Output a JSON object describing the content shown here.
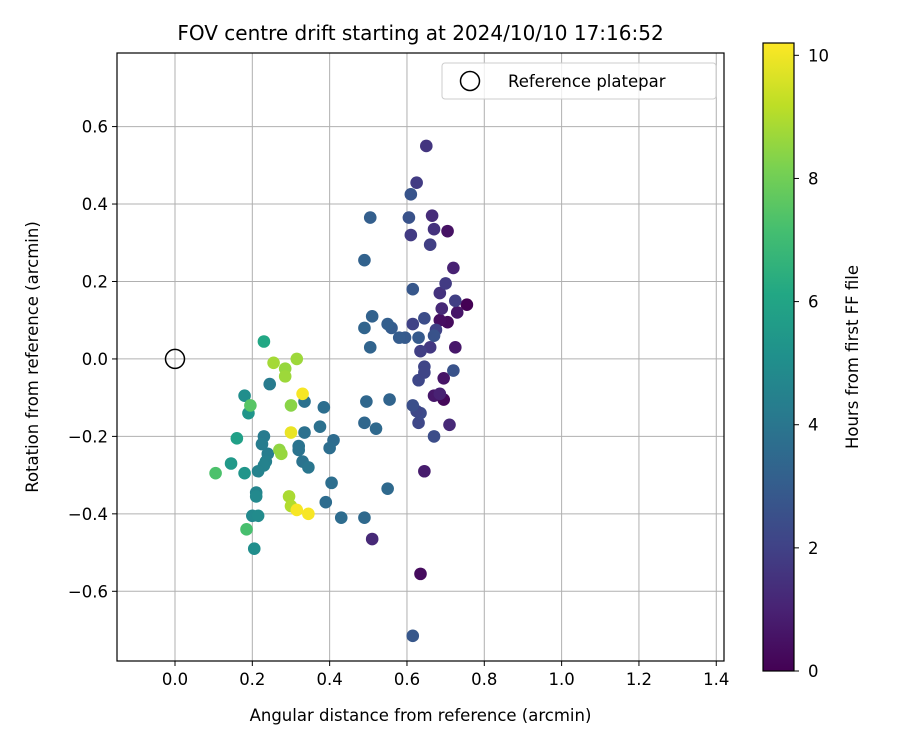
{
  "chart_data": {
    "type": "scatter",
    "title": "FOV centre drift starting at 2024/10/10 17:16:52",
    "xlabel": "Angular distance from reference (arcmin)",
    "ylabel": "Rotation from reference (arcmin)",
    "xlim": [
      -0.15,
      1.42
    ],
    "ylim": [
      -0.78,
      0.79
    ],
    "xticks": [
      "0.0",
      "0.2",
      "0.4",
      "0.6",
      "0.8",
      "1.0",
      "1.2",
      "1.4"
    ],
    "yticks": [
      "−0.6",
      "−0.4",
      "−0.2",
      "0.0",
      "0.2",
      "0.4",
      "0.6"
    ],
    "xtick_values": [
      0.0,
      0.2,
      0.4,
      0.6,
      0.8,
      1.0,
      1.2,
      1.4
    ],
    "ytick_values": [
      -0.6,
      -0.4,
      -0.2,
      0.0,
      0.2,
      0.4,
      0.6
    ],
    "grid": true,
    "legend": {
      "placement": "top-right",
      "entries": [
        "Reference platepar"
      ]
    },
    "reference_point": {
      "x": 0.0,
      "y": 0.0
    },
    "colorbar": {
      "label": "Hours from first FF file",
      "range": [
        0,
        10.2
      ],
      "ticks": [
        "0",
        "2",
        "4",
        "6",
        "8",
        "10"
      ],
      "tick_values": [
        0,
        2,
        4,
        6,
        8,
        10
      ],
      "colormap": "viridis"
    },
    "points": [
      {
        "x": 0.755,
        "y": 0.14,
        "h": 0.0
      },
      {
        "x": 0.695,
        "y": -0.105,
        "h": 0.2
      },
      {
        "x": 0.705,
        "y": 0.095,
        "h": 0.3
      },
      {
        "x": 0.685,
        "y": 0.1,
        "h": 0.4
      },
      {
        "x": 0.73,
        "y": 0.12,
        "h": 0.6
      },
      {
        "x": 0.635,
        "y": -0.555,
        "h": 0.3
      },
      {
        "x": 0.695,
        "y": -0.05,
        "h": 0.6
      },
      {
        "x": 0.645,
        "y": -0.29,
        "h": 0.8
      },
      {
        "x": 0.725,
        "y": 0.03,
        "h": 0.7
      },
      {
        "x": 0.705,
        "y": 0.33,
        "h": 0.5
      },
      {
        "x": 0.67,
        "y": -0.095,
        "h": 0.7
      },
      {
        "x": 0.685,
        "y": -0.09,
        "h": 1.0
      },
      {
        "x": 0.71,
        "y": -0.17,
        "h": 1.2
      },
      {
        "x": 0.72,
        "y": 0.235,
        "h": 1.0
      },
      {
        "x": 0.69,
        "y": 0.13,
        "h": 1.2
      },
      {
        "x": 0.665,
        "y": 0.37,
        "h": 1.3
      },
      {
        "x": 0.51,
        "y": -0.465,
        "h": 1.2
      },
      {
        "x": 0.67,
        "y": 0.335,
        "h": 1.5
      },
      {
        "x": 0.685,
        "y": 0.17,
        "h": 1.5
      },
      {
        "x": 0.65,
        "y": 0.55,
        "h": 1.6
      },
      {
        "x": 0.625,
        "y": 0.455,
        "h": 1.8
      },
      {
        "x": 0.61,
        "y": 0.32,
        "h": 1.8
      },
      {
        "x": 0.66,
        "y": 0.295,
        "h": 1.9
      },
      {
        "x": 0.7,
        "y": 0.195,
        "h": 1.8
      },
      {
        "x": 0.725,
        "y": 0.15,
        "h": 1.9
      },
      {
        "x": 0.66,
        "y": 0.03,
        "h": 1.7
      },
      {
        "x": 0.675,
        "y": 0.075,
        "h": 2.0
      },
      {
        "x": 0.615,
        "y": 0.09,
        "h": 2.0
      },
      {
        "x": 0.635,
        "y": 0.02,
        "h": 1.9
      },
      {
        "x": 0.645,
        "y": -0.02,
        "h": 2.1
      },
      {
        "x": 0.63,
        "y": -0.055,
        "h": 2.2
      },
      {
        "x": 0.645,
        "y": -0.035,
        "h": 2.1
      },
      {
        "x": 0.63,
        "y": -0.165,
        "h": 2.2
      },
      {
        "x": 0.635,
        "y": -0.14,
        "h": 2.3
      },
      {
        "x": 0.67,
        "y": -0.2,
        "h": 2.4
      },
      {
        "x": 0.625,
        "y": -0.135,
        "h": 2.2
      },
      {
        "x": 0.615,
        "y": -0.12,
        "h": 2.5
      },
      {
        "x": 0.645,
        "y": 0.105,
        "h": 2.4
      },
      {
        "x": 0.67,
        "y": 0.06,
        "h": 2.6
      },
      {
        "x": 0.72,
        "y": -0.03,
        "h": 2.6
      },
      {
        "x": 0.61,
        "y": 0.425,
        "h": 2.7
      },
      {
        "x": 0.605,
        "y": 0.365,
        "h": 2.6
      },
      {
        "x": 0.615,
        "y": 0.18,
        "h": 2.8
      },
      {
        "x": 0.615,
        "y": -0.715,
        "h": 2.8
      },
      {
        "x": 0.63,
        "y": 0.055,
        "h": 2.9
      },
      {
        "x": 0.595,
        "y": 0.055,
        "h": 2.9
      },
      {
        "x": 0.58,
        "y": 0.055,
        "h": 3.0
      },
      {
        "x": 0.56,
        "y": 0.08,
        "h": 3.0
      },
      {
        "x": 0.55,
        "y": 0.09,
        "h": 3.1
      },
      {
        "x": 0.505,
        "y": 0.365,
        "h": 3.1
      },
      {
        "x": 0.49,
        "y": 0.255,
        "h": 3.2
      },
      {
        "x": 0.51,
        "y": 0.11,
        "h": 3.2
      },
      {
        "x": 0.49,
        "y": 0.08,
        "h": 3.3
      },
      {
        "x": 0.505,
        "y": 0.03,
        "h": 3.3
      },
      {
        "x": 0.495,
        "y": -0.11,
        "h": 3.4
      },
      {
        "x": 0.555,
        "y": -0.105,
        "h": 3.3
      },
      {
        "x": 0.49,
        "y": -0.165,
        "h": 3.4
      },
      {
        "x": 0.52,
        "y": -0.18,
        "h": 3.5
      },
      {
        "x": 0.55,
        "y": -0.335,
        "h": 3.5
      },
      {
        "x": 0.49,
        "y": -0.41,
        "h": 3.5
      },
      {
        "x": 0.43,
        "y": -0.41,
        "h": 3.6
      },
      {
        "x": 0.39,
        "y": -0.37,
        "h": 3.6
      },
      {
        "x": 0.405,
        "y": -0.32,
        "h": 3.7
      },
      {
        "x": 0.385,
        "y": -0.125,
        "h": 3.7
      },
      {
        "x": 0.41,
        "y": -0.21,
        "h": 3.6
      },
      {
        "x": 0.4,
        "y": -0.23,
        "h": 3.7
      },
      {
        "x": 0.375,
        "y": -0.175,
        "h": 3.8
      },
      {
        "x": 0.335,
        "y": -0.11,
        "h": 3.8
      },
      {
        "x": 0.335,
        "y": -0.19,
        "h": 3.8
      },
      {
        "x": 0.32,
        "y": -0.225,
        "h": 3.9
      },
      {
        "x": 0.32,
        "y": -0.235,
        "h": 3.9
      },
      {
        "x": 0.33,
        "y": -0.265,
        "h": 3.9
      },
      {
        "x": 0.345,
        "y": -0.28,
        "h": 4.0
      },
      {
        "x": 0.245,
        "y": -0.065,
        "h": 4.2
      },
      {
        "x": 0.23,
        "y": -0.2,
        "h": 4.2
      },
      {
        "x": 0.225,
        "y": -0.22,
        "h": 4.3
      },
      {
        "x": 0.24,
        "y": -0.245,
        "h": 4.3
      },
      {
        "x": 0.235,
        "y": -0.265,
        "h": 4.4
      },
      {
        "x": 0.23,
        "y": -0.275,
        "h": 4.5
      },
      {
        "x": 0.215,
        "y": -0.29,
        "h": 4.5
      },
      {
        "x": 0.21,
        "y": -0.345,
        "h": 4.6
      },
      {
        "x": 0.21,
        "y": -0.355,
        "h": 4.8
      },
      {
        "x": 0.2,
        "y": -0.405,
        "h": 4.8
      },
      {
        "x": 0.215,
        "y": -0.405,
        "h": 4.9
      },
      {
        "x": 0.205,
        "y": -0.49,
        "h": 5.0
      },
      {
        "x": 0.18,
        "y": -0.095,
        "h": 5.0
      },
      {
        "x": 0.19,
        "y": -0.14,
        "h": 5.3
      },
      {
        "x": 0.18,
        "y": -0.295,
        "h": 5.3
      },
      {
        "x": 0.145,
        "y": -0.27,
        "h": 5.5
      },
      {
        "x": 0.16,
        "y": -0.205,
        "h": 5.8
      },
      {
        "x": 0.23,
        "y": 0.045,
        "h": 6.1
      },
      {
        "x": 0.185,
        "y": -0.44,
        "h": 7.2
      },
      {
        "x": 0.105,
        "y": -0.295,
        "h": 7.3
      },
      {
        "x": 0.195,
        "y": -0.12,
        "h": 7.5
      },
      {
        "x": 0.255,
        "y": -0.01,
        "h": 8.8
      },
      {
        "x": 0.285,
        "y": -0.025,
        "h": 8.6
      },
      {
        "x": 0.285,
        "y": -0.045,
        "h": 8.7
      },
      {
        "x": 0.315,
        "y": 0.0,
        "h": 8.7
      },
      {
        "x": 0.27,
        "y": -0.235,
        "h": 8.5
      },
      {
        "x": 0.275,
        "y": -0.245,
        "h": 8.6
      },
      {
        "x": 0.3,
        "y": -0.12,
        "h": 8.4
      },
      {
        "x": 0.295,
        "y": -0.355,
        "h": 8.9
      },
      {
        "x": 0.3,
        "y": -0.38,
        "h": 9.0
      },
      {
        "x": 0.315,
        "y": -0.39,
        "h": 10.1
      },
      {
        "x": 0.345,
        "y": -0.4,
        "h": 10.1
      },
      {
        "x": 0.3,
        "y": -0.19,
        "h": 9.9
      },
      {
        "x": 0.33,
        "y": -0.09,
        "h": 10.1
      }
    ]
  }
}
